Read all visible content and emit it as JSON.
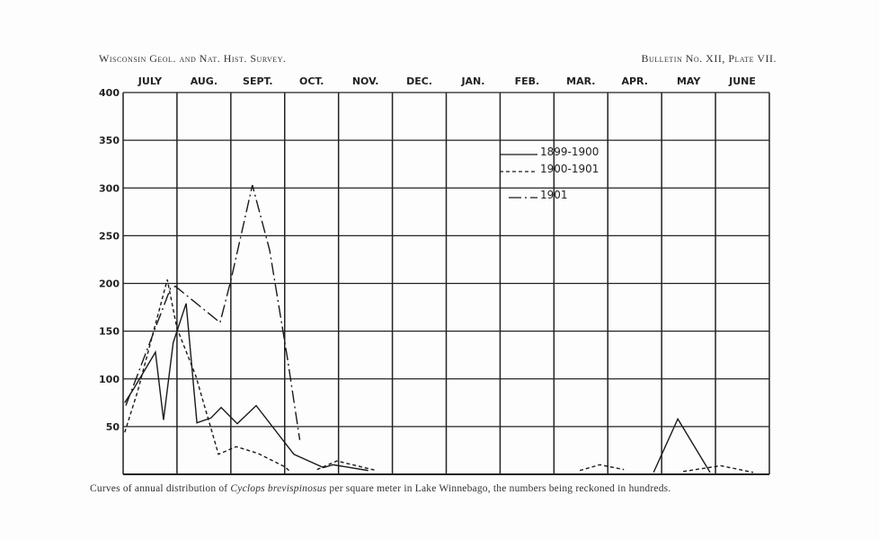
{
  "header": {
    "left": "Wisconsin Geol. and Nat. Hist. Survey.",
    "right": "Bulletin No. XII, Plate VII."
  },
  "caption": {
    "before": "Curves of annual distribution of ",
    "species": "Cyclops brevispinosus",
    "after": " per square meter in Lake Winnebago,  the numbers being reckoned in hundreds."
  },
  "chart_data": {
    "type": "line",
    "title": "",
    "xlabel": "",
    "ylabel": "",
    "categories": [
      "JULY",
      "AUG.",
      "SEPT.",
      "OCT.",
      "NOV.",
      "DEC.",
      "JAN.",
      "FEB.",
      "MAR.",
      "APR.",
      "MAY",
      "JUNE"
    ],
    "x_units": "months from start of July (0-12)",
    "xlim": [
      0,
      12
    ],
    "ylim": [
      0,
      400
    ],
    "yticks": [
      50,
      100,
      150,
      200,
      250,
      300,
      350,
      400
    ],
    "grid": true,
    "legend_position": "top-center-right",
    "series": [
      {
        "name": "1899-1900",
        "style": "solid",
        "segments": [
          [
            [
              0.03,
              75
            ],
            [
              0.2,
              90
            ],
            [
              0.6,
              128
            ],
            [
              0.75,
              57
            ],
            [
              0.93,
              138
            ],
            [
              1.17,
              179
            ],
            [
              1.37,
              54
            ],
            [
              1.63,
              59
            ],
            [
              1.82,
              70
            ],
            [
              2.12,
              53
            ],
            [
              2.47,
              72
            ],
            [
              3.17,
              21
            ],
            [
              3.72,
              7
            ],
            [
              3.9,
              10
            ],
            [
              4.55,
              4
            ]
          ],
          [
            [
              9.85,
              2
            ],
            [
              10.3,
              58
            ],
            [
              10.9,
              2
            ]
          ]
        ]
      },
      {
        "name": "1900-1901",
        "style": "dashed",
        "segments": [
          [
            [
              0.03,
              44
            ],
            [
              0.27,
              87
            ],
            [
              0.82,
              204
            ],
            [
              1.0,
              153
            ],
            [
              1.35,
              103
            ],
            [
              1.77,
              21
            ],
            [
              2.1,
              29
            ],
            [
              2.5,
              22
            ],
            [
              3.0,
              8
            ],
            [
              3.1,
              3
            ]
          ],
          [
            [
              3.6,
              5
            ],
            [
              3.97,
              14
            ],
            [
              4.7,
              4
            ]
          ],
          [
            [
              8.48,
              4
            ],
            [
              8.85,
              10
            ],
            [
              9.3,
              5
            ]
          ],
          [
            [
              10.4,
              3
            ],
            [
              11.1,
              9
            ],
            [
              11.7,
              2
            ]
          ]
        ]
      },
      {
        "name": "1901",
        "style": "dash-dot",
        "segments": [
          [
            [
              0.05,
              72
            ],
            [
              0.88,
              195
            ],
            [
              0.97,
              197
            ],
            [
              1.8,
              159
            ],
            [
              2.0,
              203
            ],
            [
              2.4,
              303
            ],
            [
              2.72,
              235
            ],
            [
              3.05,
              122
            ],
            [
              3.28,
              36
            ]
          ]
        ]
      }
    ]
  }
}
